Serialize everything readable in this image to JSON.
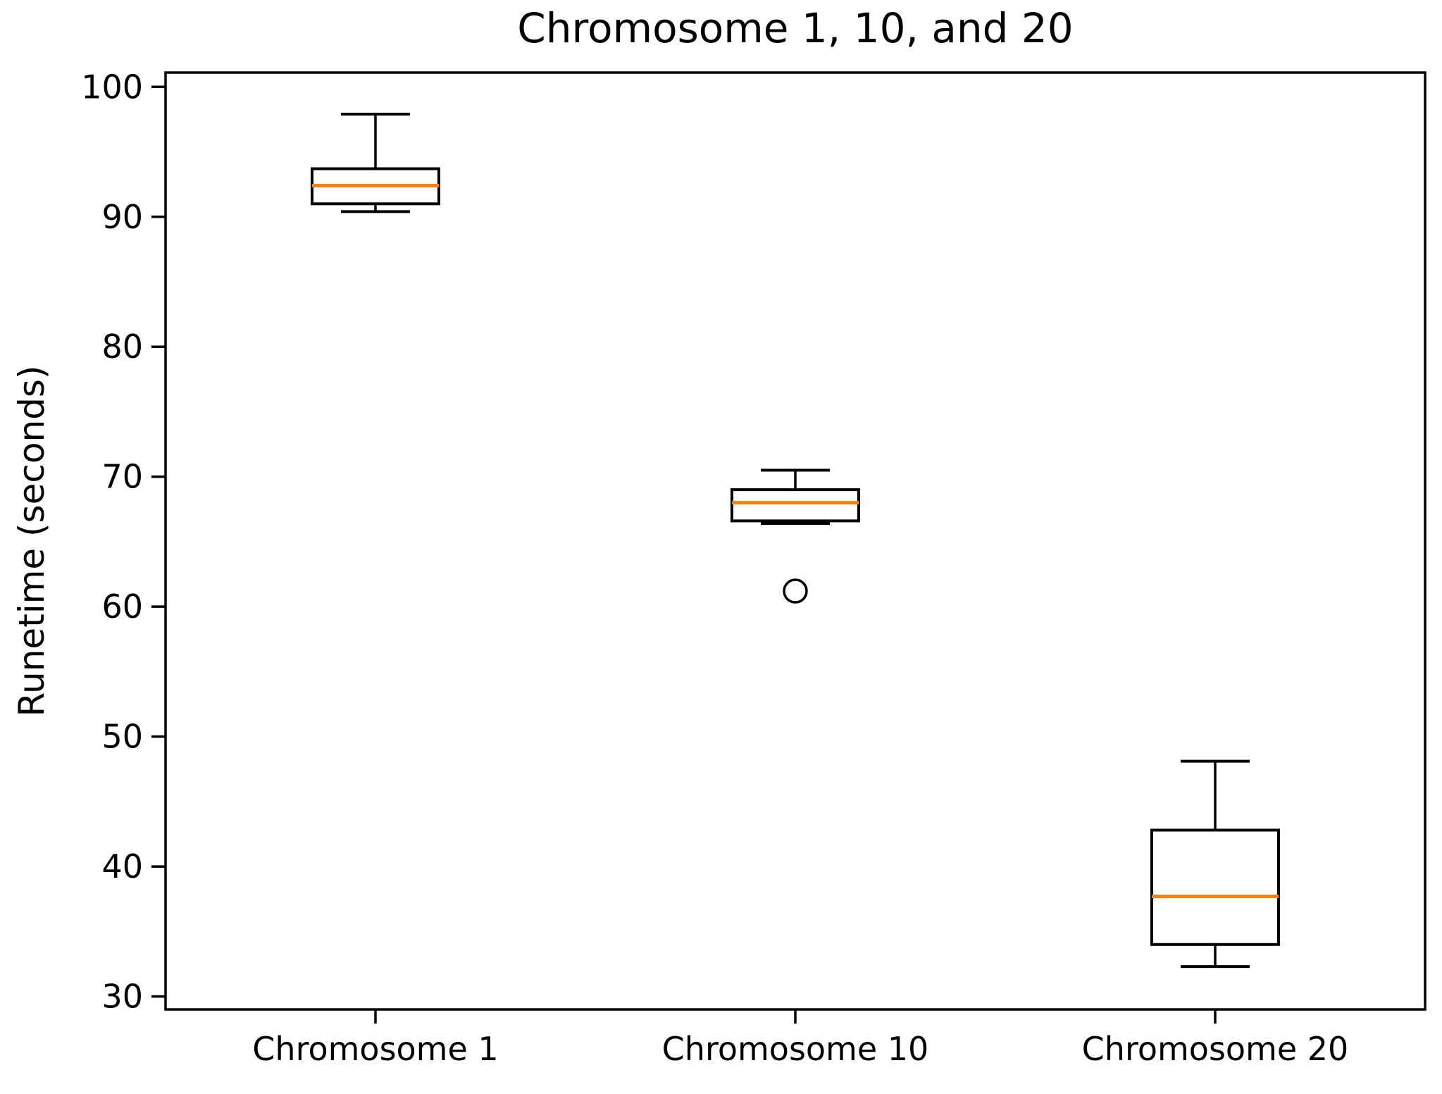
{
  "figure": {
    "title": "Chromosome 1, 10, and 20",
    "ylabel": "Runetime (seconds)"
  },
  "chart_data": {
    "type": "boxplot",
    "title": "Chromosome 1, 10, and 20",
    "xlabel": "",
    "ylabel": "Runetime (seconds)",
    "categories": [
      "Chromosome 1",
      "Chromosome 10",
      "Chromosome 20"
    ],
    "yticks": [
      30,
      40,
      50,
      60,
      70,
      80,
      90,
      100
    ],
    "ylim": [
      29.0,
      101.1
    ],
    "grid": false,
    "legend": false,
    "series": [
      {
        "name": "Chromosome 1",
        "whisker_low": 90.4,
        "q1": 91.0,
        "median": 92.4,
        "q3": 93.7,
        "whisker_high": 97.9,
        "outliers": []
      },
      {
        "name": "Chromosome 10",
        "whisker_low": 66.4,
        "q1": 66.6,
        "median": 68.0,
        "q3": 69.0,
        "whisker_high": 70.5,
        "outliers": [
          61.2
        ]
      },
      {
        "name": "Chromosome 20",
        "whisker_low": 32.3,
        "q1": 34.0,
        "median": 37.7,
        "q3": 42.8,
        "whisker_high": 48.1,
        "outliers": []
      }
    ],
    "colors": {
      "median": "#ff7f0e",
      "box_line": "#000000",
      "axis_line": "#000000",
      "background": "#ffffff"
    }
  }
}
